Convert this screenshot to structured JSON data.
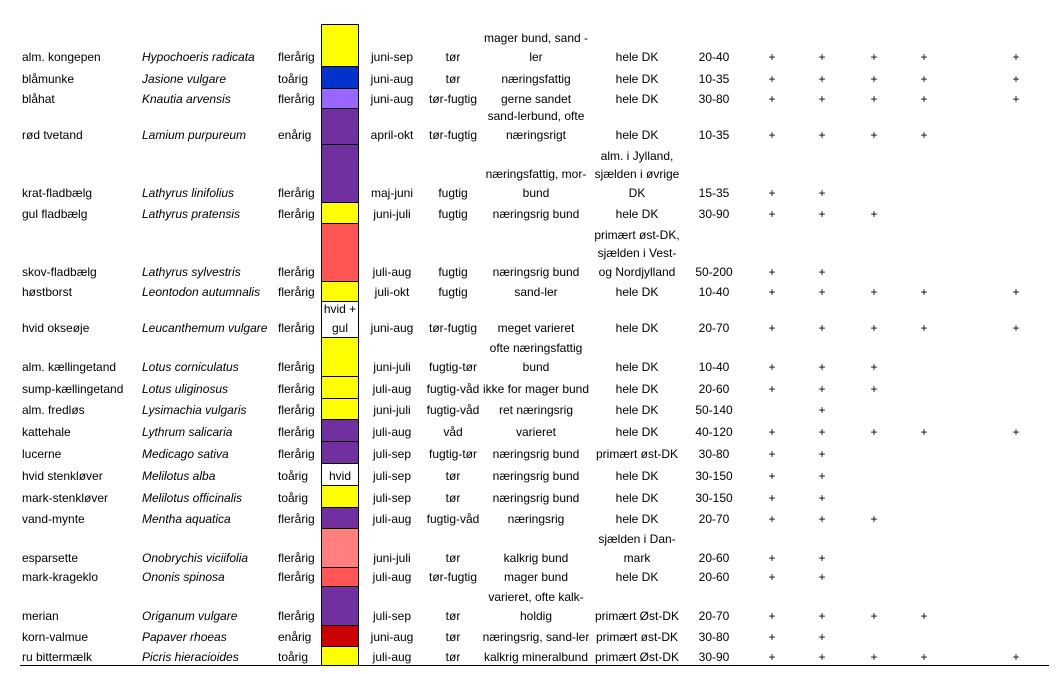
{
  "colors": {
    "yellow": "#ffff00",
    "blue": "#0033cc",
    "light_purple": "#9966ff",
    "purple": "#7030a0",
    "coral": "#ff5555",
    "white": "#ffffff",
    "pink": "#ff7f7f",
    "red": "#cc0000"
  },
  "rows": [
    {
      "danish": "alm. kongepen",
      "latin": "Hypochoeris radicata",
      "life": "flerårig",
      "color": "yellow",
      "color_label": "",
      "bloom": "juni-sep",
      "moisture": "tør",
      "soil": [
        "mager bund, sand -",
        "ler"
      ],
      "distribution": [
        "hele DK"
      ],
      "height": "20-40",
      "plus": [
        "+",
        "+",
        "+",
        "+",
        "+"
      ]
    },
    {
      "danish": "blåmunke",
      "latin": "Jasione vulgare",
      "life": "toårig",
      "color": "blue",
      "color_label": "",
      "bloom": "juni-aug",
      "moisture": "tør",
      "soil": [
        "næringsfattig"
      ],
      "distribution": [
        "hele DK"
      ],
      "height": "10-35",
      "plus": [
        "+",
        "+",
        "+",
        "+",
        "+"
      ]
    },
    {
      "danish": "blåhat",
      "latin": "Knautia arvensis",
      "life": "flerårig",
      "color": "light_purple",
      "color_label": "",
      "bloom": "juni-aug",
      "moisture": "tør-fugtig",
      "soil": [
        "gerne sandet"
      ],
      "distribution": [
        "hele DK"
      ],
      "height": "30-80",
      "plus": [
        "+",
        "+",
        "+",
        "+",
        "+"
      ]
    },
    {
      "danish": "rød tvetand",
      "latin": "Lamium purpureum",
      "life": "enårig",
      "color": "purple",
      "color_label": "",
      "bloom": "april-okt",
      "moisture": "tør-fugtig",
      "soil": [
        "sand-lerbund, ofte",
        "næringsrigt"
      ],
      "distribution": [
        "hele DK"
      ],
      "height": "10-35",
      "plus": [
        "+",
        "+",
        "+",
        "+",
        ""
      ]
    },
    {
      "danish": "krat-fladbælg",
      "latin": "Lathyrus linifolius",
      "life": "flerårig",
      "color": "purple",
      "color_label": "",
      "bloom": "maj-juni",
      "moisture": "fugtig",
      "soil": [
        "næringsfattig, mor-",
        "bund"
      ],
      "distribution": [
        "alm. i Jylland,",
        "sjælden i øvrige",
        "DK"
      ],
      "height": "15-35",
      "plus": [
        "+",
        "+",
        "",
        "",
        ""
      ]
    },
    {
      "danish": "gul fladbælg",
      "latin": "Lathyrus pratensis",
      "life": "flerårig",
      "color": "yellow",
      "color_label": "",
      "bloom": "juni-juli",
      "moisture": "fugtig",
      "soil": [
        "næringsrig bund"
      ],
      "distribution": [
        "hele DK"
      ],
      "height": "30-90",
      "plus": [
        "+",
        "+",
        "+",
        "",
        ""
      ]
    },
    {
      "danish": "skov-fladbælg",
      "latin": "Lathyrus sylvestris",
      "life": "flerårig",
      "color": "coral",
      "color_label": "",
      "bloom": "juli-aug",
      "moisture": "fugtig",
      "soil": [
        "næringsrig bund"
      ],
      "distribution": [
        "primært øst-DK,",
        "sjælden i Vest-",
        "og Nordjylland"
      ],
      "height": "50-200",
      "plus": [
        "+",
        "+",
        "",
        "",
        ""
      ]
    },
    {
      "danish": "høstborst",
      "latin": "Leontodon autumnalis",
      "life": "flerårig",
      "color": "yellow",
      "color_label": "",
      "bloom": "juli-okt",
      "moisture": "fugtig",
      "soil": [
        "sand-ler"
      ],
      "distribution": [
        "hele DK"
      ],
      "height": "10-40",
      "plus": [
        "+",
        "+",
        "+",
        "+",
        "+"
      ]
    },
    {
      "danish": "hvid okseøje",
      "latin": "Leucanthemum vulgare",
      "life": "flerårig",
      "color": "white",
      "color_label": "hvid +\ngul",
      "bloom": "juni-aug",
      "moisture": "tør-fugtig",
      "soil": [
        "meget varieret"
      ],
      "distribution": [
        "hele DK"
      ],
      "height": "20-70",
      "plus": [
        "+",
        "+",
        "+",
        "+",
        "+"
      ]
    },
    {
      "danish": "alm. kællingetand",
      "latin": "Lotus corniculatus",
      "life": "flerårig",
      "color": "yellow",
      "color_label": "",
      "bloom": "juni-juli",
      "moisture": "fugtig-tør",
      "soil": [
        "ofte næringsfattig",
        "bund"
      ],
      "distribution": [
        "hele DK"
      ],
      "height": "10-40",
      "plus": [
        "+",
        "+",
        "+",
        "",
        ""
      ]
    },
    {
      "danish": "sump-kællingetand",
      "latin": "Lotus uliginosus",
      "life": "flerårig",
      "color": "yellow",
      "color_label": "",
      "bloom": "juli-aug",
      "moisture": "fugtig-våd",
      "soil": [
        "ikke for mager bund"
      ],
      "distribution": [
        "hele DK"
      ],
      "height": "20-60",
      "plus": [
        "+",
        "+",
        "+",
        "",
        ""
      ]
    },
    {
      "danish": "alm. fredløs",
      "latin": "Lysimachia vulgaris",
      "life": "flerårig",
      "color": "yellow",
      "color_label": "",
      "bloom": "juni-juli",
      "moisture": "fugtig-våd",
      "soil": [
        "ret næringsrig"
      ],
      "distribution": [
        "hele DK"
      ],
      "height": "50-140",
      "plus": [
        "",
        "+",
        "",
        "",
        ""
      ]
    },
    {
      "danish": "kattehale",
      "latin": "Lythrum salicaria",
      "life": "flerårig",
      "color": "purple",
      "color_label": "",
      "bloom": "juli-aug",
      "moisture": "våd",
      "soil": [
        "varieret"
      ],
      "distribution": [
        "hele DK"
      ],
      "height": "40-120",
      "plus": [
        "+",
        "+",
        "+",
        "+",
        "+"
      ]
    },
    {
      "danish": "lucerne",
      "latin": "Medicago sativa",
      "life": "flerårig",
      "color": "purple",
      "color_label": "",
      "bloom": "juli-sep",
      "moisture": "fugtig-tør",
      "soil": [
        "næringsrig bund"
      ],
      "distribution": [
        "primært øst-DK"
      ],
      "height": "30-80",
      "plus": [
        "+",
        "+",
        "",
        "",
        ""
      ]
    },
    {
      "danish": "hvid stenkløver",
      "latin": "Melilotus alba",
      "life": "toårig",
      "color": "white",
      "color_label": "hvid",
      "bloom": "juli-sep",
      "moisture": "tør",
      "soil": [
        "næringsrig bund"
      ],
      "distribution": [
        "hele DK"
      ],
      "height": "30-150",
      "plus": [
        "+",
        "+",
        "",
        "",
        ""
      ]
    },
    {
      "danish": "mark-stenkløver",
      "latin": "Melilotus officinalis",
      "life": "toårig",
      "color": "yellow",
      "color_label": "",
      "bloom": "juli-sep",
      "moisture": "tør",
      "soil": [
        "næringsrig bund"
      ],
      "distribution": [
        "hele DK"
      ],
      "height": "30-150",
      "plus": [
        "+",
        "+",
        "",
        "",
        ""
      ]
    },
    {
      "danish": "vand-mynte",
      "latin": "Mentha aquatica",
      "life": "flerårig",
      "color": "purple",
      "color_label": "",
      "bloom": "juli-aug",
      "moisture": "fugtig-våd",
      "soil": [
        "næringsrig"
      ],
      "distribution": [
        "hele DK"
      ],
      "height": "20-70",
      "plus": [
        "+",
        "+",
        "+",
        "",
        ""
      ]
    },
    {
      "danish": "esparsette",
      "latin": "Onobrychis viciifolia",
      "life": "flerårig",
      "color": "pink",
      "color_label": "",
      "bloom": "juni-juli",
      "moisture": "tør",
      "soil": [
        "kalkrig bund"
      ],
      "distribution": [
        "sjælden i Dan-",
        "mark"
      ],
      "height": "20-60",
      "plus": [
        "+",
        "+",
        "",
        "",
        ""
      ]
    },
    {
      "danish": "mark-krageklo",
      "latin": "Ononis spinosa",
      "life": "flerårig",
      "color": "coral",
      "color_label": "",
      "bloom": "juli-aug",
      "moisture": "tør-fugtig",
      "soil": [
        "mager bund"
      ],
      "distribution": [
        "hele DK"
      ],
      "height": "20-60",
      "plus": [
        "+",
        "+",
        "",
        "",
        ""
      ]
    },
    {
      "danish": "merian",
      "latin": "Origanum vulgare",
      "life": "flerårig",
      "color": "purple",
      "color_label": "",
      "bloom": "juli-sep",
      "moisture": "tør",
      "soil": [
        "varieret, ofte kalk-",
        "holdig"
      ],
      "distribution": [
        "primært Øst-DK"
      ],
      "height": "20-70",
      "plus": [
        "+",
        "+",
        "+",
        "+",
        ""
      ]
    },
    {
      "danish": "korn-valmue",
      "latin": "Papaver rhoeas",
      "life": "enårig",
      "color": "red",
      "color_label": "",
      "bloom": "juni-aug",
      "moisture": "tør",
      "soil": [
        "næringsrig, sand-ler"
      ],
      "distribution": [
        "primært øst-DK"
      ],
      "height": "30-80",
      "plus": [
        "+",
        "+",
        "",
        "",
        ""
      ]
    },
    {
      "danish": "ru bittermælk",
      "latin": "Picris hieracioides",
      "life": "toårig",
      "color": "yellow",
      "color_label": "",
      "bloom": "juli-aug",
      "moisture": "tør",
      "soil": [
        "kalkrig mineralbund"
      ],
      "distribution": [
        "primært Øst-DK"
      ],
      "height": "30-90",
      "plus": [
        "+",
        "+",
        "+",
        "+",
        "+"
      ]
    }
  ]
}
